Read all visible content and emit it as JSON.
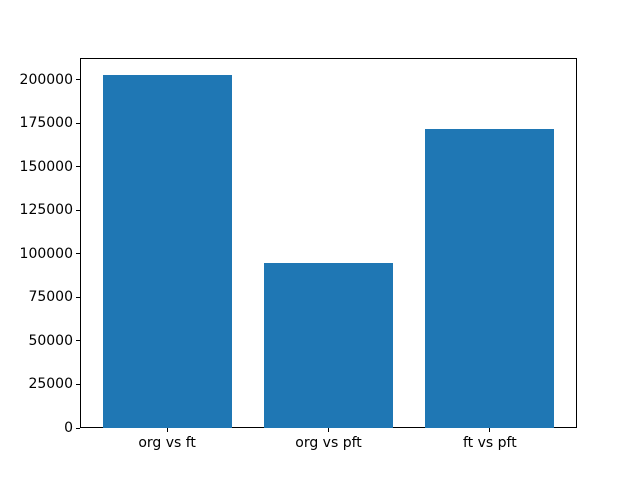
{
  "figure": {
    "background": "#ffffff",
    "axis_color": "#000000",
    "tick_label_color": "#000000"
  },
  "chart_data": {
    "type": "bar",
    "title": "",
    "xlabel": "",
    "ylabel": "",
    "categories": [
      "org vs ft",
      "org vs pft",
      "ft vs pft"
    ],
    "values": [
      203000,
      94500,
      172000
    ],
    "bar_color": "#1f77b4",
    "bar_width": 0.8,
    "xlim": [
      -0.54,
      2.54
    ],
    "ylim": [
      0,
      212500
    ],
    "yticks": [
      0,
      25000,
      50000,
      75000,
      100000,
      125000,
      150000,
      175000,
      200000
    ],
    "ytick_labels": [
      "0",
      "25000",
      "50000",
      "75000",
      "100000",
      "125000",
      "150000",
      "175000",
      "200000"
    ],
    "grid": false,
    "legend": null
  }
}
